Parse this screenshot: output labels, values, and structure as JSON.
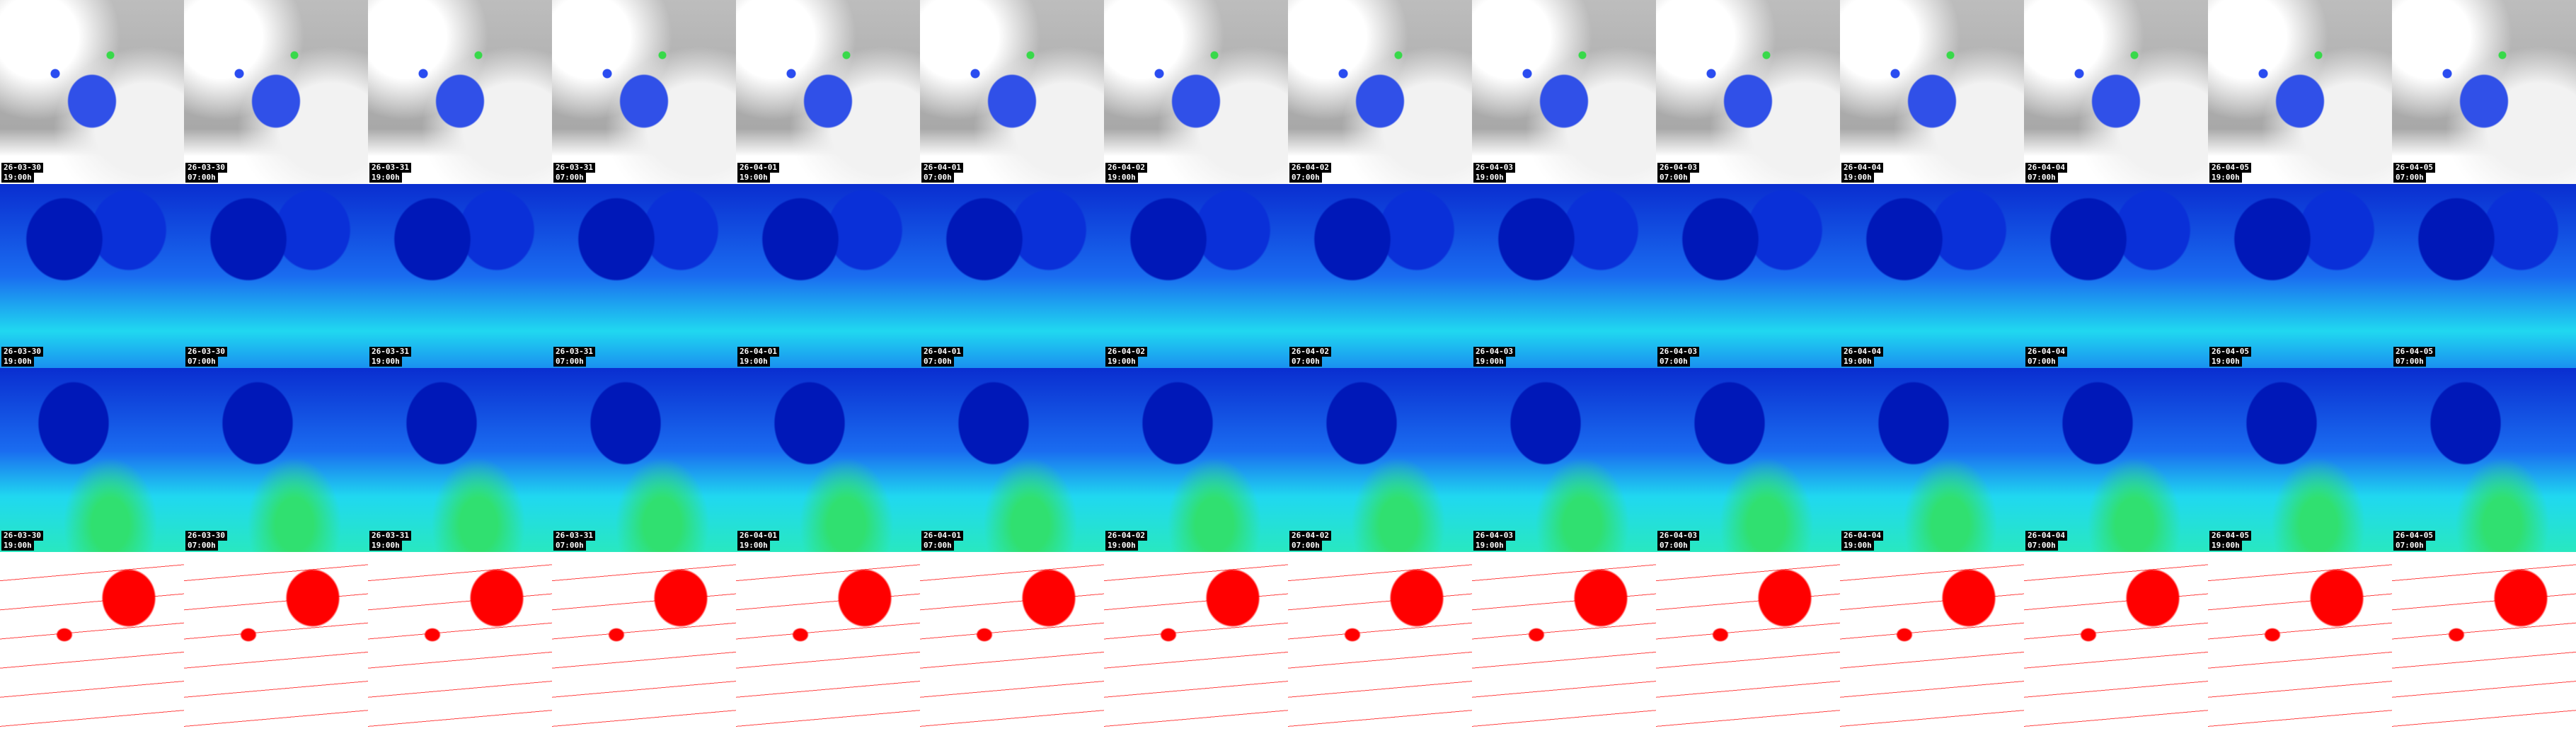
{
  "rows": [
    {
      "panels": [
        {
          "date": "26-03-30",
          "time": "19:00h"
        },
        {
          "date": "26-03-30",
          "time": "07:00h"
        },
        {
          "date": "26-03-31",
          "time": "19:00h"
        },
        {
          "date": "26-03-31",
          "time": "07:00h"
        },
        {
          "date": "26-04-01",
          "time": "19:00h"
        },
        {
          "date": "26-04-01",
          "time": "07:00h"
        },
        {
          "date": "26-04-02",
          "time": "19:00h"
        },
        {
          "date": "26-04-02",
          "time": "07:00h"
        },
        {
          "date": "26-04-03",
          "time": "19:00h"
        },
        {
          "date": "26-04-03",
          "time": "07:00h"
        },
        {
          "date": "26-04-04",
          "time": "19:00h"
        },
        {
          "date": "26-04-04",
          "time": "07:00h"
        },
        {
          "date": "26-04-05",
          "time": "19:00h"
        },
        {
          "date": "26-04-05",
          "time": "07:00h"
        }
      ]
    },
    {
      "panels": [
        {
          "date": "26-03-30",
          "time": "19:00h"
        },
        {
          "date": "26-03-30",
          "time": "07:00h"
        },
        {
          "date": "26-03-31",
          "time": "19:00h"
        },
        {
          "date": "26-03-31",
          "time": "07:00h"
        },
        {
          "date": "26-04-01",
          "time": "19:00h"
        },
        {
          "date": "26-04-01",
          "time": "07:00h"
        },
        {
          "date": "26-04-02",
          "time": "19:00h"
        },
        {
          "date": "26-04-02",
          "time": "07:00h"
        },
        {
          "date": "26-04-03",
          "time": "19:00h"
        },
        {
          "date": "26-04-03",
          "time": "07:00h"
        },
        {
          "date": "26-04-04",
          "time": "19:00h"
        },
        {
          "date": "26-04-04",
          "time": "07:00h"
        },
        {
          "date": "26-04-05",
          "time": "19:00h"
        },
        {
          "date": "26-04-05",
          "time": "07:00h"
        }
      ]
    },
    {
      "panels": [
        {
          "date": "26-03-30",
          "time": "19:00h"
        },
        {
          "date": "26-03-30",
          "time": "07:00h"
        },
        {
          "date": "26-03-31",
          "time": "19:00h"
        },
        {
          "date": "26-03-31",
          "time": "07:00h"
        },
        {
          "date": "26-04-01",
          "time": "19:00h"
        },
        {
          "date": "26-04-01",
          "time": "07:00h"
        },
        {
          "date": "26-04-02",
          "time": "19:00h"
        },
        {
          "date": "26-04-02",
          "time": "07:00h"
        },
        {
          "date": "26-04-03",
          "time": "19:00h"
        },
        {
          "date": "26-04-03",
          "time": "07:00h"
        },
        {
          "date": "26-04-04",
          "time": "19:00h"
        },
        {
          "date": "26-04-04",
          "time": "07:00h"
        },
        {
          "date": "26-04-05",
          "time": "19:00h"
        },
        {
          "date": "26-04-05",
          "time": "07:00h"
        }
      ]
    }
  ]
}
